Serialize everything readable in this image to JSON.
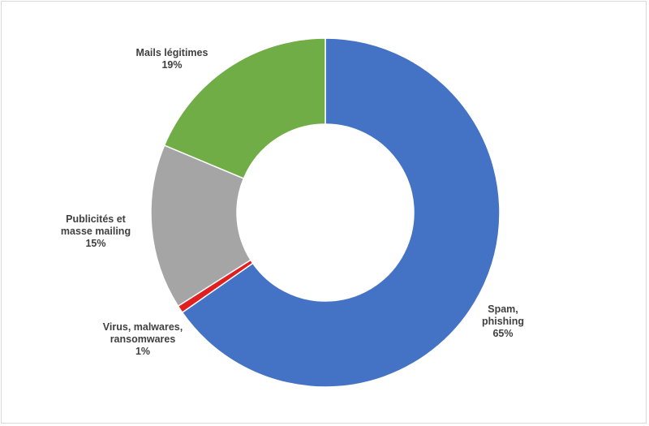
{
  "chart_data": {
    "type": "pie",
    "donut": true,
    "title": "",
    "categories": [
      "Spam, phishing",
      "Virus, malwares, ransomwares",
      "Publicités et masse mailing",
      "Mails légitimes"
    ],
    "values": [
      65.3,
      0.7,
      15.3,
      18.7
    ],
    "colors": [
      "#4472c4",
      "#e02020",
      "#a5a5a5",
      "#70ad47"
    ],
    "labels": [
      {
        "lines": [
          "Spam,",
          "phishing"
        ],
        "pct": "65%"
      },
      {
        "lines": [
          "Virus, malwares,",
          "ransomwares"
        ],
        "pct": "1%"
      },
      {
        "lines": [
          "Publicités et",
          "masse mailing"
        ],
        "pct": "15%"
      },
      {
        "lines": [
          "Mails légitimes"
        ],
        "pct": "19%"
      }
    ],
    "legend": "none"
  }
}
